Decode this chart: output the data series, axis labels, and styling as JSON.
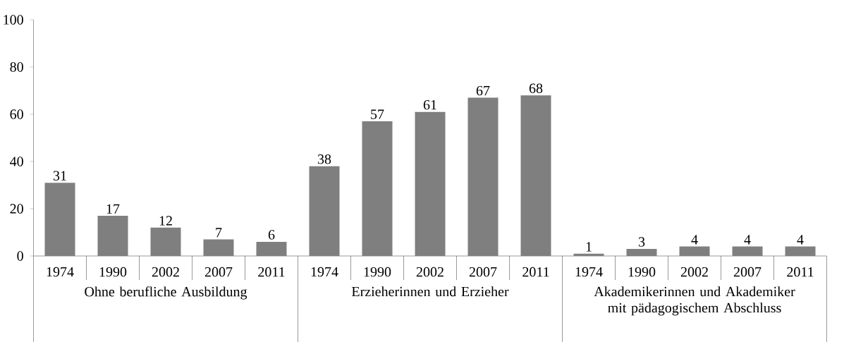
{
  "chart_data": {
    "type": "bar",
    "categories": [
      "1974",
      "1990",
      "2002",
      "2007",
      "2011",
      "1974",
      "1990",
      "2002",
      "2007",
      "2011",
      "1974",
      "1990",
      "2002",
      "2007",
      "2011"
    ],
    "values": [
      31,
      17,
      12,
      7,
      6,
      38,
      57,
      61,
      67,
      68,
      1,
      3,
      4,
      4,
      4
    ],
    "color": "#7f7f7f",
    "ylim": [
      0,
      100
    ],
    "yticks": [
      0,
      20,
      40,
      60,
      80,
      100
    ],
    "data_labels": true,
    "grid": false,
    "annotations": [
      "Ohne berufliche Ausbildung",
      "Erzieherinnen und Erzieher",
      "Akademikerinnen und Akademiker mit pädagogischem Abschluss"
    ]
  }
}
